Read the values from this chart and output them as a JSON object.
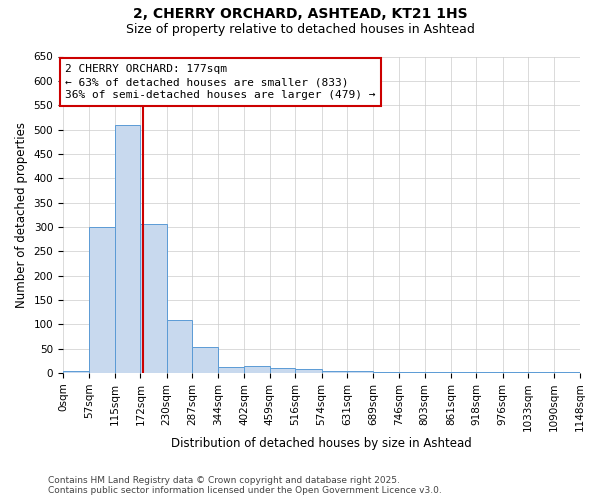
{
  "title": "2, CHERRY ORCHARD, ASHTEAD, KT21 1HS",
  "subtitle": "Size of property relative to detached houses in Ashtead",
  "xlabel": "Distribution of detached houses by size in Ashtead",
  "ylabel": "Number of detached properties",
  "bin_edges": [
    0,
    57,
    115,
    172,
    230,
    287,
    344,
    402,
    459,
    516,
    574,
    631,
    689,
    746,
    803,
    861,
    918,
    976,
    1033,
    1090,
    1148
  ],
  "bar_heights": [
    5,
    300,
    510,
    305,
    108,
    53,
    13,
    15,
    10,
    8,
    5,
    4,
    2,
    3,
    1,
    1,
    2,
    1,
    1,
    3
  ],
  "bar_color": "#c8d9ee",
  "bar_edge_color": "#5b9bd5",
  "property_size": 177,
  "vline_color": "#cc0000",
  "annotation_line1": "2 CHERRY ORCHARD: 177sqm",
  "annotation_line2": "← 63% of detached houses are smaller (833)",
  "annotation_line3": "36% of semi-detached houses are larger (479) →",
  "annotation_box_color": "#ffffff",
  "annotation_box_edge_color": "#cc0000",
  "ylim": [
    0,
    650
  ],
  "yticks": [
    0,
    50,
    100,
    150,
    200,
    250,
    300,
    350,
    400,
    450,
    500,
    550,
    600,
    650
  ],
  "background_color": "#ffffff",
  "grid_color": "#cccccc",
  "footer_text": "Contains HM Land Registry data © Crown copyright and database right 2025.\nContains public sector information licensed under the Open Government Licence v3.0.",
  "title_fontsize": 10,
  "subtitle_fontsize": 9,
  "axis_label_fontsize": 8.5,
  "tick_fontsize": 7.5,
  "annotation_fontsize": 8,
  "footer_fontsize": 6.5
}
